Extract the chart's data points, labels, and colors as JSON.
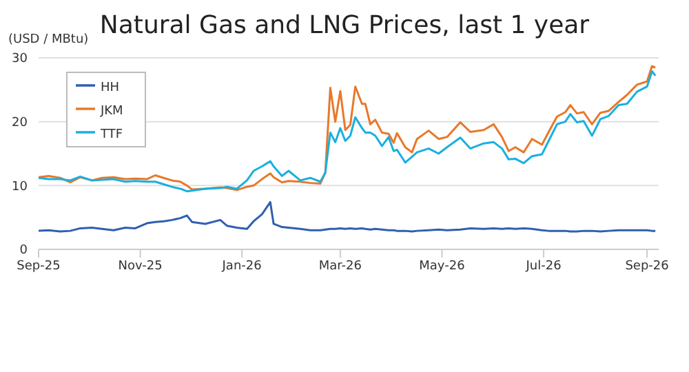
{
  "chart_data": {
    "type": "line",
    "title": "Natural Gas and LNG Prices, last 1 year",
    "ylabel": "(USD / MBtu)",
    "x": [
      "2025-09-01",
      "2025-09-07",
      "2025-09-14",
      "2025-09-20",
      "2025-09-26",
      "2025-10-03",
      "2025-10-09",
      "2025-10-16",
      "2025-10-23",
      "2025-10-29",
      "2025-11-05",
      "2025-11-10",
      "2025-11-15",
      "2025-11-20",
      "2025-11-25",
      "2025-11-29",
      "2025-12-02",
      "2025-12-10",
      "2025-12-19",
      "2025-12-23",
      "2025-12-29",
      "2026-01-04",
      "2026-01-08",
      "2026-01-13",
      "2026-01-18",
      "2026-01-20",
      "2026-01-25",
      "2026-01-29",
      "2026-02-05",
      "2026-02-11",
      "2026-02-17",
      "2026-02-20",
      "2026-02-23",
      "2026-02-26",
      "2026-03-01",
      "2026-03-04",
      "2026-03-07",
      "2026-03-10",
      "2026-03-14",
      "2026-03-16",
      "2026-03-19",
      "2026-03-22",
      "2026-03-26",
      "2026-03-30",
      "2026-04-02",
      "2026-04-04",
      "2026-04-09",
      "2026-04-13",
      "2026-04-16",
      "2026-04-23",
      "2026-04-29",
      "2026-05-04",
      "2026-05-12",
      "2026-05-18",
      "2026-05-26",
      "2026-06-01",
      "2026-06-06",
      "2026-06-10",
      "2026-06-14",
      "2026-06-19",
      "2026-06-24",
      "2026-06-30",
      "2026-07-04",
      "2026-07-09",
      "2026-07-14",
      "2026-07-17",
      "2026-07-21",
      "2026-07-25",
      "2026-07-30",
      "2026-08-04",
      "2026-08-09",
      "2026-08-15",
      "2026-08-20",
      "2026-08-26",
      "2026-09-01",
      "2026-09-04",
      "2026-09-06"
    ],
    "series": [
      {
        "name": "JKM",
        "color": "#e8782a",
        "values": [
          11.3,
          11.5,
          11.2,
          10.5,
          11.3,
          10.8,
          11.2,
          11.3,
          11.0,
          11.1,
          11.0,
          11.6,
          11.2,
          10.8,
          10.6,
          10.0,
          9.4,
          9.5,
          9.7,
          9.6,
          9.3,
          9.8,
          10.0,
          11.0,
          11.9,
          11.3,
          10.5,
          10.7,
          10.6,
          10.4,
          10.3,
          12.0,
          25.3,
          20.0,
          24.8,
          18.7,
          19.5,
          25.5,
          22.8,
          22.8,
          19.6,
          20.3,
          18.3,
          18.1,
          16.7,
          18.2,
          16.0,
          15.2,
          17.3,
          18.6,
          17.3,
          17.6,
          19.9,
          18.4,
          18.7,
          19.6,
          17.6,
          15.4,
          16.0,
          15.2,
          17.3,
          16.4,
          18.4,
          20.8,
          21.5,
          22.6,
          21.3,
          21.5,
          19.6,
          21.4,
          21.7,
          23.1,
          24.2,
          25.8,
          26.3,
          28.7,
          28.5
        ]
      },
      {
        "name": "TTF",
        "color": "#1aafe0",
        "values": [
          11.2,
          11.0,
          11.0,
          10.8,
          11.4,
          10.8,
          10.9,
          11.0,
          10.6,
          10.7,
          10.6,
          10.6,
          10.2,
          9.8,
          9.5,
          9.1,
          9.2,
          9.5,
          9.6,
          9.8,
          9.5,
          10.8,
          12.3,
          13.0,
          13.8,
          13.0,
          11.5,
          12.3,
          10.8,
          11.2,
          10.6,
          12.0,
          18.3,
          16.8,
          19.0,
          17.0,
          17.8,
          20.7,
          19.0,
          18.3,
          18.3,
          17.8,
          16.2,
          17.6,
          15.4,
          15.6,
          13.6,
          14.5,
          15.2,
          15.8,
          15.0,
          16.0,
          17.5,
          15.8,
          16.6,
          16.8,
          15.8,
          14.1,
          14.2,
          13.5,
          14.6,
          14.9,
          17.0,
          19.6,
          20.0,
          21.2,
          19.9,
          20.1,
          17.8,
          20.4,
          20.9,
          22.6,
          22.8,
          24.7,
          25.5,
          27.9,
          27.2
        ]
      },
      {
        "name": "HH",
        "color": "#2f5fb0",
        "values": [
          2.9,
          3.0,
          2.8,
          2.9,
          3.3,
          3.4,
          3.2,
          3.0,
          3.4,
          3.3,
          4.1,
          4.3,
          4.4,
          4.6,
          4.9,
          5.3,
          4.3,
          4.0,
          4.6,
          3.7,
          3.4,
          3.2,
          4.4,
          5.5,
          7.4,
          4.0,
          3.5,
          3.4,
          3.2,
          3.0,
          3.0,
          3.1,
          3.2,
          3.2,
          3.3,
          3.2,
          3.3,
          3.2,
          3.3,
          3.2,
          3.1,
          3.2,
          3.1,
          3.0,
          3.0,
          2.9,
          2.9,
          2.8,
          2.9,
          3.0,
          3.1,
          3.0,
          3.1,
          3.3,
          3.2,
          3.3,
          3.2,
          3.3,
          3.2,
          3.3,
          3.2,
          3.0,
          2.9,
          2.9,
          2.9,
          2.8,
          2.8,
          2.9,
          2.9,
          2.8,
          2.9,
          3.0,
          3.0,
          3.0,
          3.0,
          2.9,
          2.9
        ]
      }
    ],
    "xlim": [
      "2025-09-01",
      "2026-09-08"
    ],
    "xticks": [
      {
        "value": "2025-09-01",
        "label": "Sep-25"
      },
      {
        "value": "2025-11-01",
        "label": "Nov-25"
      },
      {
        "value": "2026-01-01",
        "label": "Jan-26"
      },
      {
        "value": "2026-03-01",
        "label": "Mar-26"
      },
      {
        "value": "2026-05-01",
        "label": "May-26"
      },
      {
        "value": "2026-07-01",
        "label": "Jul-26"
      },
      {
        "value": "2026-09-01",
        "label": "Sep-26"
      }
    ],
    "ylim": [
      0,
      30
    ],
    "yticks": [
      0,
      10,
      20,
      30
    ],
    "grid": "y",
    "legend": "top left",
    "marker": "none",
    "line_style": "solid"
  }
}
